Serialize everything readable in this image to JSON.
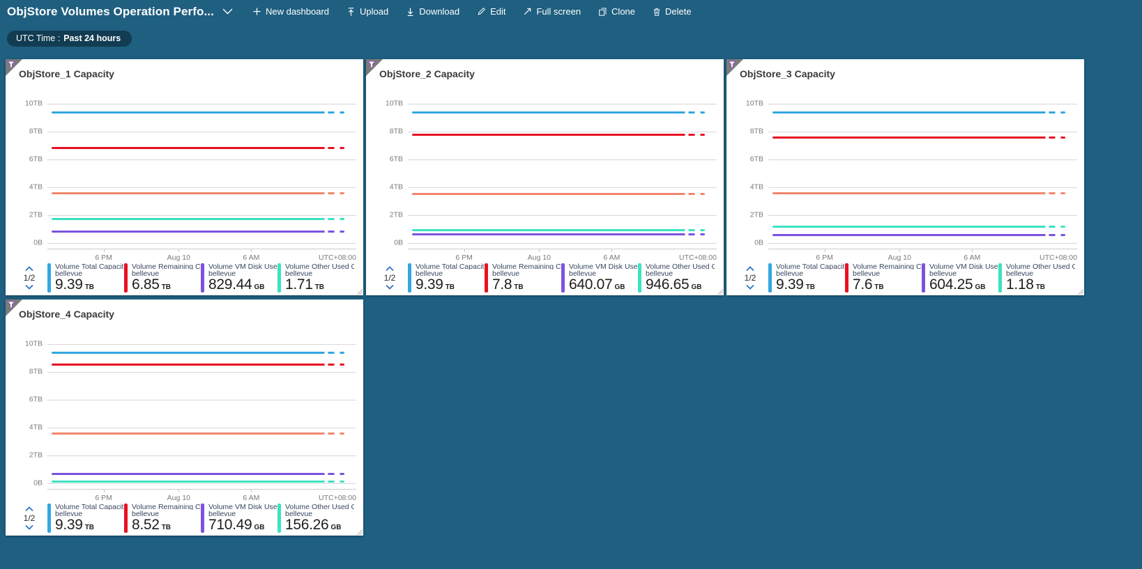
{
  "header": {
    "title": "ObjStore Volumes Operation Perfo...",
    "actions": [
      {
        "id": "new-dashboard",
        "label": "New dashboard"
      },
      {
        "id": "upload",
        "label": "Upload"
      },
      {
        "id": "download",
        "label": "Download"
      },
      {
        "id": "edit",
        "label": "Edit"
      },
      {
        "id": "fullscreen",
        "label": "Full screen"
      },
      {
        "id": "clone",
        "label": "Clone"
      },
      {
        "id": "delete",
        "label": "Delete"
      }
    ]
  },
  "filter_pill": {
    "label": "UTC Time :",
    "value": "Past 24 hours"
  },
  "colors": {
    "background": "#1f5f80",
    "tile": "#ffffff",
    "blue": "#33a7e0",
    "red": "#e81123",
    "orange": "#f2876c",
    "teal": "#3ce2c2",
    "purple": "#7c52e0",
    "gridline": "#d8d8d8",
    "axis_text": "#7a7a78"
  },
  "axis": {
    "y_labels": [
      "10TB",
      "8TB",
      "6TB",
      "4TB",
      "2TB",
      "0B"
    ],
    "x_labels": [
      "6 PM",
      "Aug 10",
      "6 AM"
    ],
    "x_positions_pct": [
      18.2,
      42.5,
      66
    ],
    "timezone": "UTC+08:00"
  },
  "chart_data": [
    {
      "type": "line",
      "title": "ObjStore_1 Capacity",
      "legend_page": "1/2",
      "x_ticks": [
        "6 PM",
        "Aug 10",
        "6 AM"
      ],
      "timezone": "UTC+08:00",
      "ylim": [
        "0B",
        "10TB"
      ],
      "series": [
        {
          "name": "Volume Total Capacit...",
          "resource": "bellevue",
          "color": "#33a7e0",
          "display": "9.39",
          "unit": "TB",
          "value_tb": 9.39,
          "in_legend": true
        },
        {
          "name": "Volume Remaining Cap...",
          "resource": "bellevue",
          "color": "#e81123",
          "display": "6.85",
          "unit": "TB",
          "value_tb": 6.85,
          "in_legend": true
        },
        {
          "name": "(unlabeled series, legend page 2)",
          "resource": "bellevue",
          "color": "#f2876c",
          "display": "",
          "unit": "",
          "value_tb": 3.6,
          "in_legend": false
        },
        {
          "name": "Volume VM Disk Used ...",
          "resource": "bellevue",
          "color": "#7c52e0",
          "display": "829.44",
          "unit": "GB",
          "value_tb": 0.81,
          "in_legend": true
        },
        {
          "name": "Volume Other Used Ca...",
          "resource": "bellevue",
          "color": "#3ce2c2",
          "display": "1.71",
          "unit": "TB",
          "value_tb": 1.71,
          "in_legend": true
        }
      ]
    },
    {
      "type": "line",
      "title": "ObjStore_2 Capacity",
      "legend_page": "1/2",
      "x_ticks": [
        "6 PM",
        "Aug 10",
        "6 AM"
      ],
      "timezone": "UTC+08:00",
      "ylim": [
        "0B",
        "10TB"
      ],
      "series": [
        {
          "name": "Volume Total Capacit...",
          "resource": "bellevue",
          "color": "#33a7e0",
          "display": "9.39",
          "unit": "TB",
          "value_tb": 9.39,
          "in_legend": true
        },
        {
          "name": "Volume Remaining Cap...",
          "resource": "bellevue",
          "color": "#e81123",
          "display": "7.8",
          "unit": "TB",
          "value_tb": 7.8,
          "in_legend": true
        },
        {
          "name": "(unlabeled series, legend page 2)",
          "resource": "bellevue",
          "color": "#f2876c",
          "display": "",
          "unit": "",
          "value_tb": 3.55,
          "in_legend": false
        },
        {
          "name": "Volume VM Disk Used ...",
          "resource": "bellevue",
          "color": "#7c52e0",
          "display": "640.07",
          "unit": "GB",
          "value_tb": 0.63,
          "in_legend": true
        },
        {
          "name": "Volume Other Used Ca...",
          "resource": "bellevue",
          "color": "#3ce2c2",
          "display": "946.65",
          "unit": "GB",
          "value_tb": 0.92,
          "in_legend": true
        }
      ]
    },
    {
      "type": "line",
      "title": "ObjStore_3 Capacity",
      "legend_page": "1/2",
      "x_ticks": [
        "6 PM",
        "Aug 10",
        "6 AM"
      ],
      "timezone": "UTC+08:00",
      "ylim": [
        "0B",
        "10TB"
      ],
      "series": [
        {
          "name": "Volume Total Capacit...",
          "resource": "bellevue",
          "color": "#33a7e0",
          "display": "9.39",
          "unit": "TB",
          "value_tb": 9.39,
          "in_legend": true
        },
        {
          "name": "Volume Remaining Cap...",
          "resource": "bellevue",
          "color": "#e81123",
          "display": "7.6",
          "unit": "TB",
          "value_tb": 7.6,
          "in_legend": true
        },
        {
          "name": "(unlabeled series, legend page 2)",
          "resource": "bellevue",
          "color": "#f2876c",
          "display": "",
          "unit": "",
          "value_tb": 3.6,
          "in_legend": false
        },
        {
          "name": "Volume VM Disk Used ...",
          "resource": "bellevue",
          "color": "#7c52e0",
          "display": "604.25",
          "unit": "GB",
          "value_tb": 0.59,
          "in_legend": true
        },
        {
          "name": "Volume Other Used Ca...",
          "resource": "bellevue",
          "color": "#3ce2c2",
          "display": "1.18",
          "unit": "TB",
          "value_tb": 1.18,
          "in_legend": true
        }
      ]
    },
    {
      "type": "line",
      "title": "ObjStore_4 Capacity",
      "legend_page": "1/2",
      "x_ticks": [
        "6 PM",
        "Aug 10",
        "6 AM"
      ],
      "timezone": "UTC+08:00",
      "ylim": [
        "0B",
        "10TB"
      ],
      "series": [
        {
          "name": "Volume Total Capacit...",
          "resource": "bellevue",
          "color": "#33a7e0",
          "display": "9.39",
          "unit": "TB",
          "value_tb": 9.39,
          "in_legend": true
        },
        {
          "name": "Volume Remaining Cap...",
          "resource": "bellevue",
          "color": "#e81123",
          "display": "8.52",
          "unit": "TB",
          "value_tb": 8.52,
          "in_legend": true
        },
        {
          "name": "(unlabeled series, legend page 2)",
          "resource": "bellevue",
          "color": "#f2876c",
          "display": "",
          "unit": "",
          "value_tb": 3.6,
          "in_legend": false
        },
        {
          "name": "Volume VM Disk Used ...",
          "resource": "bellevue",
          "color": "#7c52e0",
          "display": "710.49",
          "unit": "GB",
          "value_tb": 0.69,
          "in_legend": true
        },
        {
          "name": "Volume Other Used Ca...",
          "resource": "bellevue",
          "color": "#3ce2c2",
          "display": "156.26",
          "unit": "GB",
          "value_tb": 0.15,
          "in_legend": true
        }
      ]
    }
  ]
}
